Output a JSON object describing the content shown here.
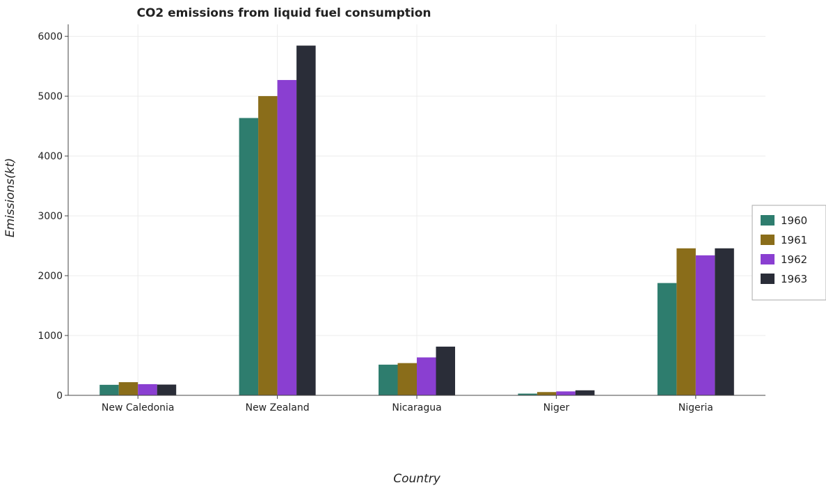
{
  "chart_data": {
    "type": "bar",
    "title": "CO2 emissions from liquid fuel consumption",
    "xlabel": "Country",
    "ylabel": "Emissions(kt)",
    "ylim": [
      0,
      6200
    ],
    "yticks": [
      0,
      1000,
      2000,
      3000,
      4000,
      5000,
      6000
    ],
    "grid": true,
    "legend_position": "right",
    "categories": [
      "New Caledonia",
      "New Zealand",
      "Nicaragua",
      "Niger",
      "Nigeria"
    ],
    "series": [
      {
        "name": "1960",
        "color": "#2e7d6e",
        "values": [
          176,
          4635,
          513,
          29,
          1877
        ]
      },
      {
        "name": "1961",
        "color": "#8a6d1a",
        "values": [
          220,
          5001,
          539,
          55,
          2457
        ]
      },
      {
        "name": "1962",
        "color": "#8a3fd1",
        "values": [
          187,
          5270,
          634,
          66,
          2340
        ]
      },
      {
        "name": "1963",
        "color": "#2a2d38",
        "values": [
          180,
          5845,
          814,
          84,
          2457
        ]
      }
    ]
  }
}
